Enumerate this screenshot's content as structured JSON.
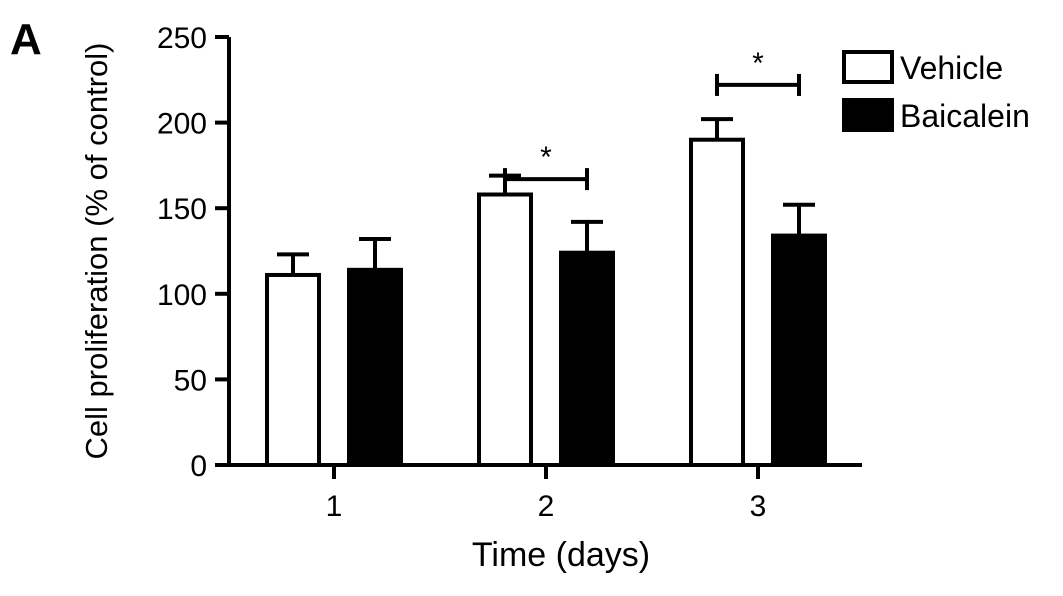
{
  "panel_label": "A",
  "chart_data": {
    "type": "bar",
    "xlabel": "Time (days)",
    "ylabel": "Cell proliferation (% of control)",
    "ylim": [
      0,
      250
    ],
    "yticks": [
      "0",
      "50",
      "100",
      "150",
      "200",
      "250"
    ],
    "categories": [
      "1",
      "2",
      "3"
    ],
    "series": [
      {
        "name": "Vehicle",
        "values": [
          111,
          158,
          190
        ],
        "errors": [
          12,
          11,
          12
        ],
        "fill": "#ffffff"
      },
      {
        "name": "Baicalein",
        "values": [
          114,
          124,
          134
        ],
        "errors": [
          18,
          18,
          18
        ],
        "fill": "#000000"
      }
    ],
    "significance": [
      {
        "category": "1",
        "label": ""
      },
      {
        "category": "2",
        "label": "*",
        "level": 167
      },
      {
        "category": "3",
        "label": "*",
        "level": 222
      }
    ],
    "legend_position": "top-right",
    "grid": false
  }
}
